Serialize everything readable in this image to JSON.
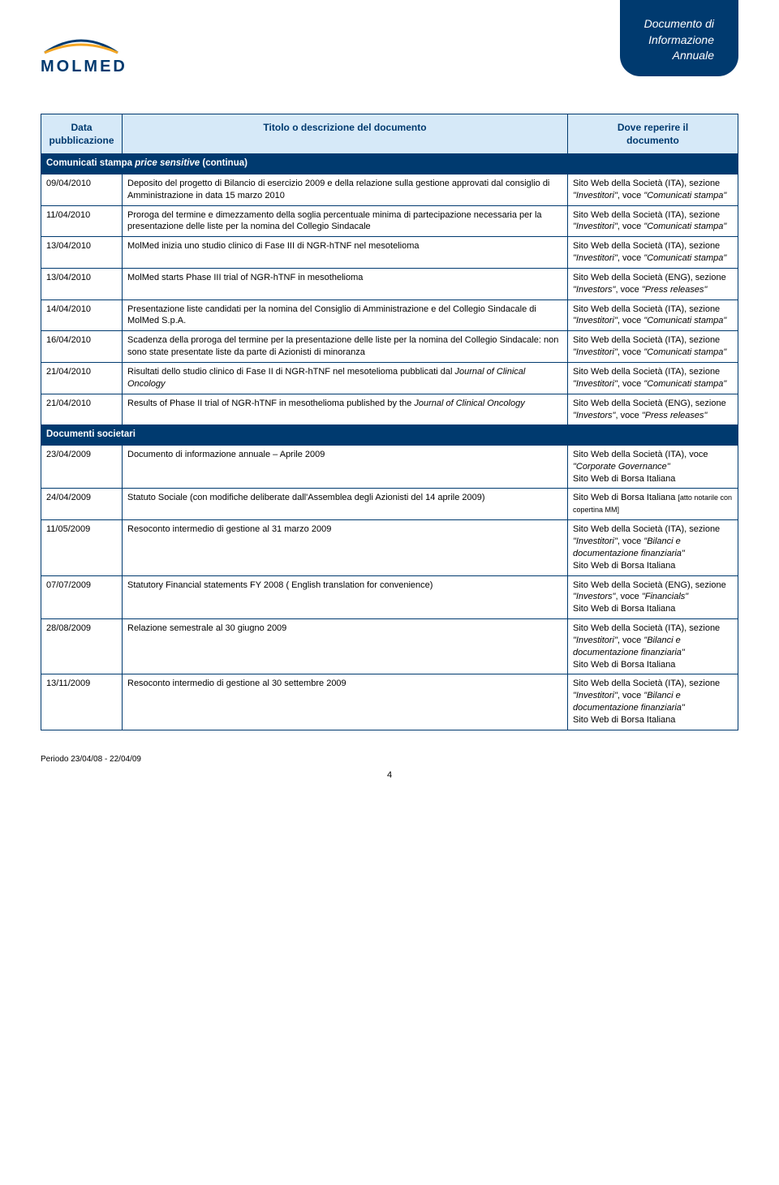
{
  "tab": {
    "line1": "Documento di",
    "line2": "Informazione",
    "line3": "Annuale"
  },
  "logo": {
    "text": "MOLMED"
  },
  "headers": {
    "col1a": "Data",
    "col1b": "pubblicazione",
    "col2": "Titolo o descrizione del documento",
    "col3a": "Dove reperire il",
    "col3b": "documento"
  },
  "section1": {
    "prefix": "Comunicati stampa ",
    "ital": "price sensitive",
    "suffix": " (continua)"
  },
  "rows1": [
    {
      "date": "09/04/2010",
      "title": "Deposito del progetto di Bilancio di esercizio 2009 e della relazione sulla gestione approvati dal consiglio di Amministrazione in data 15 marzo 2010",
      "loc_a": "Sito Web della Società (ITA), sezione ",
      "loc_q": "\"Investitori\"",
      "loc_b": ", voce ",
      "loc_q2": "\"Comunicati stampa\""
    },
    {
      "date": "11/04/2010",
      "title": "Proroga del termine e dimezzamento della soglia percentuale minima di partecipazione necessaria per la presentazione delle liste per la nomina del Collegio Sindacale",
      "loc_a": "Sito Web della Società (ITA), sezione ",
      "loc_q": "\"Investitori\"",
      "loc_b": ", voce ",
      "loc_q2": "\"Comunicati stampa\""
    },
    {
      "date": "13/04/2010",
      "title": "MolMed inizia uno studio clinico di Fase III di NGR-hTNF nel mesotelioma",
      "loc_a": "Sito Web della Società (ITA), sezione ",
      "loc_q": "\"Investitori\"",
      "loc_b": ", voce ",
      "loc_q2": "\"Comunicati stampa\""
    },
    {
      "date": "13/04/2010",
      "title": "MolMed starts Phase III trial of NGR-hTNF in mesothelioma",
      "loc_a": "Sito Web della Società (ENG), sezione ",
      "loc_q": "\"Investors\"",
      "loc_b": ", voce ",
      "loc_q2": "\"Press releases\""
    },
    {
      "date": "14/04/2010",
      "title": "Presentazione liste candidati per la nomina del Consiglio di Amministrazione e del Collegio Sindacale di MolMed S.p.A.",
      "loc_a": "Sito Web della Società (ITA), sezione ",
      "loc_q": "\"Investitori\"",
      "loc_b": ", voce ",
      "loc_q2": "\"Comunicati stampa\""
    },
    {
      "date": "16/04/2010",
      "title": "Scadenza della proroga del termine per la presentazione delle liste per la nomina del Collegio Sindacale: non sono state presentate liste da parte di Azionisti di minoranza",
      "loc_a": "Sito Web della Società (ITA), sezione ",
      "loc_q": "\"Investitori\"",
      "loc_b": ", voce ",
      "loc_q2": "\"Comunicati stampa\""
    },
    {
      "date": "21/04/2010",
      "title_a": "Risultati dello studio clinico di Fase II di NGR-hTNF nel mesotelioma pubblicati dal ",
      "title_i": "Journal of Clinical Oncology",
      "loc_a": "Sito Web della Società (ITA), sezione ",
      "loc_q": "\"Investitori\"",
      "loc_b": ", voce ",
      "loc_q2": "\"Comunicati stampa\""
    },
    {
      "date": "21/04/2010",
      "title_a": "Results of Phase II trial of NGR-hTNF in mesothelioma published by the ",
      "title_i": "Journal of Clinical Oncology",
      "loc_a": "Sito Web della Società (ENG), sezione ",
      "loc_q": "\"Investors\"",
      "loc_b": ", voce ",
      "loc_q2": "\"Press releases\""
    }
  ],
  "section2": "Documenti societari",
  "rows2": [
    {
      "date": "23/04/2009",
      "title": "Documento di informazione annuale – Aprile 2009",
      "loc_lines": [
        {
          "a": "Sito Web della Società (ITA), voce ",
          "q": "\"Corporate Governance\""
        },
        {
          "a": "Sito Web di Borsa Italiana"
        }
      ]
    },
    {
      "date": "24/04/2009",
      "title": "Statuto Sociale (con modifiche deliberate dall'Assemblea degli Azionisti del 14 aprile 2009)",
      "loc_lines": [
        {
          "a": "Sito Web di Borsa Italiana ",
          "small": "[atto notarile con copertina MM]"
        }
      ]
    },
    {
      "date": "11/05/2009",
      "title": "Resoconto intermedio di gestione al 31 marzo 2009",
      "loc_lines": [
        {
          "a": "Sito Web della Società (ITA), sezione ",
          "q": "\"Investitori\"",
          "b": ", voce ",
          "q2": "\"Bilanci e documentazione finanziaria\""
        },
        {
          "a": "Sito Web di Borsa Italiana"
        }
      ]
    },
    {
      "date": "07/07/2009",
      "title": "Statutory Financial statements FY 2008 ( English translation for convenience)",
      "loc_lines": [
        {
          "a": "Sito Web della Società (ENG), sezione ",
          "q": "\"Investors\"",
          "b": ", voce ",
          "q2": "\"Financials\""
        },
        {
          "a": "Sito Web di Borsa Italiana"
        }
      ]
    },
    {
      "date": "28/08/2009",
      "title": "Relazione semestrale al 30 giugno 2009",
      "loc_lines": [
        {
          "a": "Sito Web della Società (ITA), sezione ",
          "q": "\"Investitori\"",
          "b": ", voce ",
          "q2": "\"Bilanci e documentazione finanziaria\""
        },
        {
          "a": "Sito Web di Borsa Italiana"
        }
      ]
    },
    {
      "date": "13/11/2009",
      "title": "Resoconto intermedio di gestione al 30 settembre 2009",
      "loc_lines": [
        {
          "a": "Sito Web della Società (ITA), sezione ",
          "q": "\"Investitori\"",
          "b": ", voce ",
          "q2": "\"Bilanci e documentazione finanziaria\""
        },
        {
          "a": "Sito Web di Borsa Italiana"
        }
      ]
    }
  ],
  "footer": "Periodo 23/04/08 - 22/04/09",
  "pagenum": "4"
}
